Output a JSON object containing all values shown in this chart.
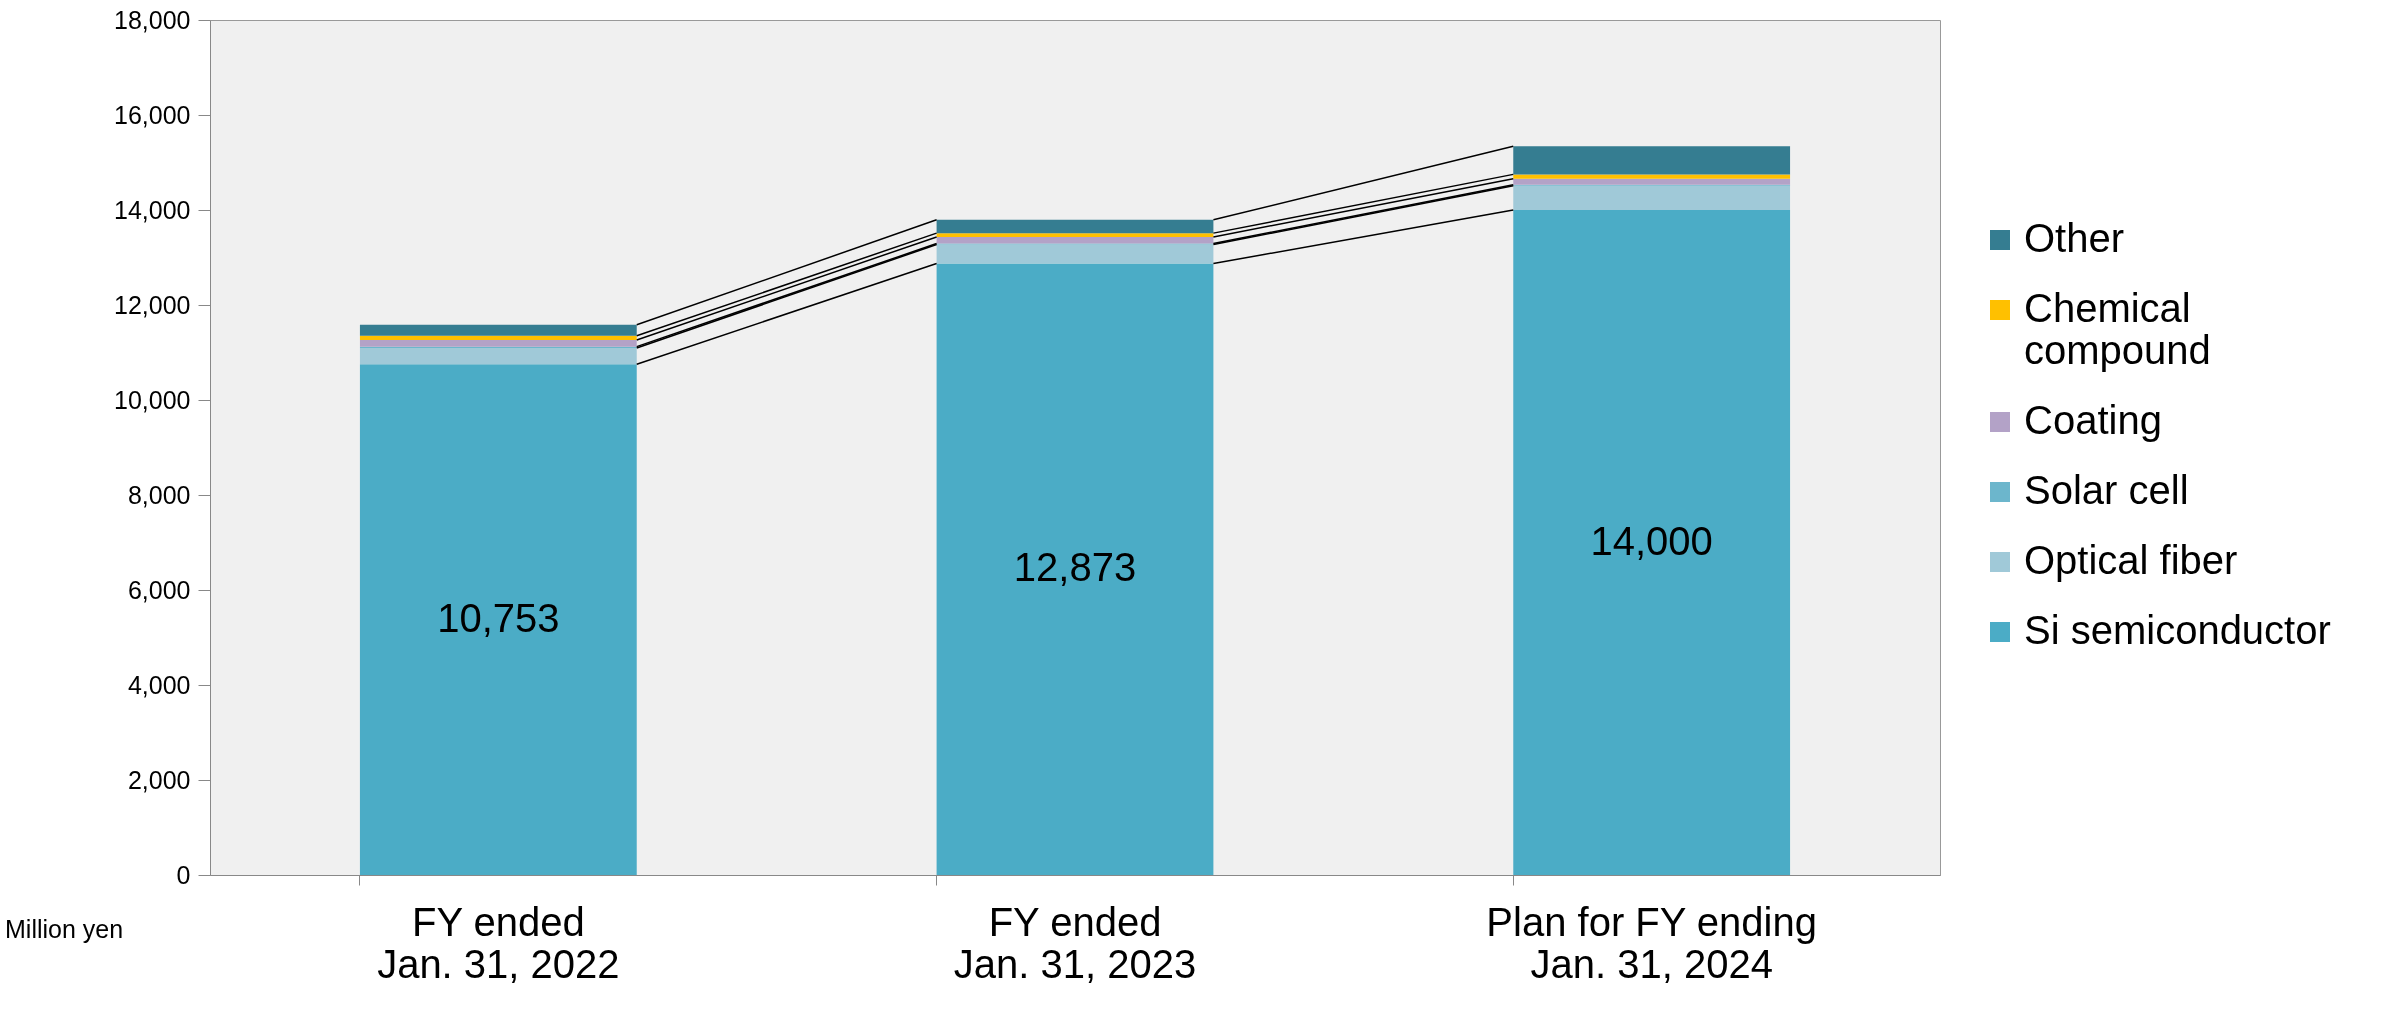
{
  "chart_data": {
    "type": "bar",
    "stacked": true,
    "categories": [
      "FY ended\nJan. 31, 2022",
      "FY ended\nJan. 31, 2023",
      "Plan for FY ending\nJan. 31, 2024"
    ],
    "series": [
      {
        "name": "Si semiconductor",
        "color": "#4bacc6",
        "values": [
          10753,
          12873,
          14000
        ],
        "value_labels": [
          "10,753",
          "12,873",
          "14,000"
        ]
      },
      {
        "name": "Optical fiber",
        "color": "#a0c9d8",
        "values": [
          340,
          400,
          510
        ]
      },
      {
        "name": "Solar cell",
        "color": "#6cb6cc",
        "values": [
          30,
          20,
          20
        ]
      },
      {
        "name": "Coating",
        "color": "#b3a2c7",
        "values": [
          140,
          140,
          130
        ]
      },
      {
        "name": "Chemical\ncompound",
        "color": "#ffc000",
        "values": [
          90,
          80,
          90
        ]
      },
      {
        "name": "Other",
        "color": "#357d91",
        "values": [
          230,
          280,
          590
        ]
      }
    ],
    "ylim": [
      0,
      18000
    ],
    "yticks": [
      0,
      {
        "value": 2000,
        "label": "2,000"
      },
      {
        "value": 4000,
        "label": "4,000"
      },
      {
        "value": 6000,
        "label": "6,000"
      },
      {
        "value": 8000,
        "label": "8,000"
      },
      {
        "value": 10000,
        "label": "10,000"
      },
      {
        "value": 12000,
        "label": "12,000"
      },
      {
        "value": 14000,
        "label": "14,000"
      },
      {
        "value": 16000,
        "label": "16,000"
      },
      {
        "value": 18000,
        "label": "18,000"
      }
    ],
    "grid": false,
    "legend": "right",
    "annotations": [
      "Million yen"
    ]
  }
}
